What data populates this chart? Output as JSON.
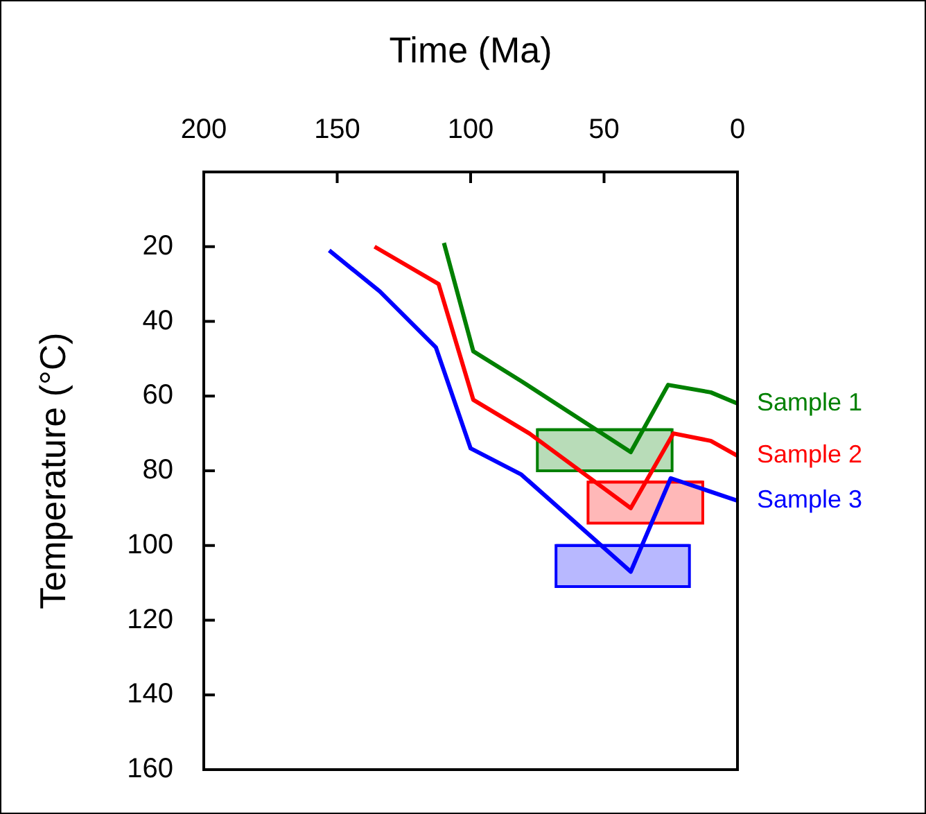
{
  "chart_data": {
    "type": "line",
    "xlabel": "Time (Ma)",
    "ylabel": "Temperature (°C)",
    "xlim": [
      200,
      0
    ],
    "xticks": [
      200,
      150,
      100,
      50,
      0
    ],
    "ylim": [
      160,
      0
    ],
    "yticks": [
      20,
      40,
      60,
      80,
      100,
      120,
      140,
      160
    ],
    "grid": false,
    "legend": false,
    "marker": "none",
    "line_style": "solid",
    "series": [
      {
        "name": "Sample 1",
        "color": "#008000",
        "x": [
          110,
          99,
          81,
          40,
          26,
          10,
          0
        ],
        "values": [
          19,
          48,
          56,
          75,
          57,
          59,
          62
        ]
      },
      {
        "name": "Sample 2",
        "color": "#ff0000",
        "x": [
          136,
          112,
          99,
          78,
          40,
          24,
          10,
          0
        ],
        "values": [
          20,
          30,
          61,
          70,
          90,
          70,
          72,
          76
        ]
      },
      {
        "name": "Sample 3",
        "color": "#0000ff",
        "x": [
          153,
          134,
          113,
          100,
          81,
          40,
          25,
          0
        ],
        "values": [
          21,
          32,
          47,
          74,
          81,
          107,
          82,
          88
        ]
      },
      {
        "color": "#008000",
        "x": [
          75,
          24.5
        ],
        "values": [
          69,
          69
        ],
        "lower": [
          69,
          69
        ],
        "upper": [
          80,
          80
        ]
      },
      {
        "color": "#ff0000",
        "x": [
          56,
          13
        ],
        "values": [
          83,
          83
        ],
        "lower": [
          83,
          83
        ],
        "upper": [
          94,
          94
        ]
      },
      {
        "color": "#0000ff",
        "x": [
          68,
          18
        ],
        "values": [
          100,
          100
        ],
        "lower": [
          100,
          100
        ],
        "upper": [
          111,
          111
        ]
      }
    ]
  }
}
